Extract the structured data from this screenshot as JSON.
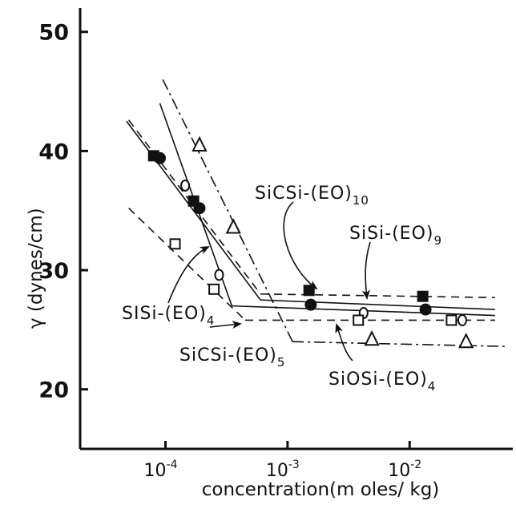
{
  "chart_data": {
    "type": "line",
    "title": "",
    "xlabel": "concentration(m oles/ kg)",
    "ylabel": "γ (dynes/cm)",
    "x_scale": "log",
    "xlim": [
      2e-05,
      0.07
    ],
    "ylim": [
      15,
      52
    ],
    "x_ticks": [
      {
        "value": 0.0001,
        "base": "10",
        "exp": "-4"
      },
      {
        "value": 0.001,
        "base": "10",
        "exp": "-3"
      },
      {
        "value": 0.01,
        "base": "10",
        "exp": "-2"
      }
    ],
    "y_ticks": [
      20,
      30,
      40,
      50
    ],
    "series": [
      {
        "name": "SiCSi-(EO)10",
        "marker": "filled-square",
        "dash": "dashed",
        "points": [
          [
            8e-05,
            39.6
          ],
          [
            0.00017,
            35.8
          ],
          [
            0.0015,
            28.3
          ],
          [
            0.0128,
            27.8
          ]
        ],
        "fit_lines": [
          [
            [
              5e-05,
              42.6
            ],
            [
              0.0006,
              28.0
            ]
          ],
          [
            [
              0.0006,
              28.0
            ],
            [
              0.05,
              27.7
            ]
          ]
        ]
      },
      {
        "name": "SiSi-(EO)9",
        "marker": "filled-circle",
        "dash": "solid",
        "points": [
          [
            9e-05,
            39.4
          ],
          [
            0.00019,
            35.2
          ],
          [
            0.00155,
            27.1
          ],
          [
            0.0135,
            26.7
          ]
        ],
        "fit_lines": [
          [
            [
              4.8e-05,
              42.5
            ],
            [
              0.0006,
              27.5
            ]
          ],
          [
            [
              0.0006,
              27.5
            ],
            [
              0.05,
              26.7
            ]
          ]
        ]
      },
      {
        "name": "SiSi-(EO)4",
        "marker": "open-circle",
        "dash": "solid",
        "points": [
          [
            0.000145,
            37.1
          ],
          [
            0.000275,
            29.6
          ],
          [
            0.0042,
            26.4
          ],
          [
            0.027,
            25.8
          ]
        ],
        "fit_lines": [
          [
            [
              9e-05,
              44.0
            ],
            [
              0.00035,
              27.0
            ]
          ],
          [
            [
              0.00035,
              27.0
            ],
            [
              0.05,
              26.2
            ]
          ]
        ]
      },
      {
        "name": "SiCSi-(EO)5",
        "marker": "open-square",
        "dash": "dashed",
        "points": [
          [
            0.00012,
            32.2
          ],
          [
            0.00025,
            28.4
          ],
          [
            0.0038,
            25.8
          ],
          [
            0.022,
            25.8
          ]
        ],
        "fit_lines": [
          [
            [
              5e-05,
              35.2
            ],
            [
              0.00045,
              25.8
            ]
          ],
          [
            [
              0.00045,
              25.8
            ],
            [
              0.05,
              25.8
            ]
          ]
        ]
      },
      {
        "name": "SiOSi-(EO)4",
        "marker": "open-triangle",
        "dash": "dash-dot",
        "points": [
          [
            0.00019,
            40.5
          ],
          [
            0.00036,
            33.6
          ],
          [
            0.0049,
            24.2
          ],
          [
            0.029,
            24.0
          ]
        ],
        "fit_lines": [
          [
            [
              9.5e-05,
              46.0
            ],
            [
              0.0011,
              24.0
            ]
          ],
          [
            [
              0.0011,
              24.0
            ],
            [
              0.06,
              23.6
            ]
          ]
        ]
      }
    ],
    "annotations": [
      {
        "id": "sicsi-eo10",
        "main": "SiCSi-(EO)",
        "sub": "10"
      },
      {
        "id": "sisi-eo9",
        "main": "SiSi-(EO)",
        "sub": "9"
      },
      {
        "id": "sisi-eo4",
        "main": "SISi-(EO)",
        "sub": "4"
      },
      {
        "id": "sicsi-eo5",
        "main": "SiCSi-(EO)",
        "sub": "5"
      },
      {
        "id": "siosi-eo4",
        "main": "SiOSi-(EO)",
        "sub": "4"
      }
    ],
    "grid": false,
    "legend": "none (series labelled by curved-arrow annotations)"
  }
}
